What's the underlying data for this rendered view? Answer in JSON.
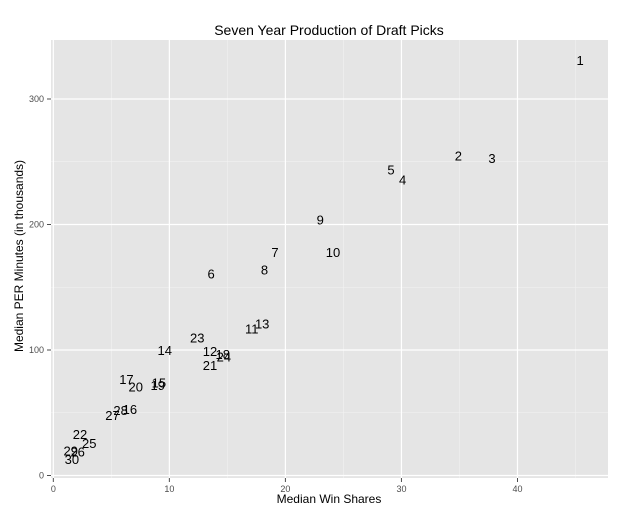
{
  "chart_data": {
    "type": "scatter",
    "title": "Seven Year Production of Draft Picks",
    "xlabel": "Median Win Shares",
    "ylabel": "Median PER Minutes (in thousands)",
    "xlim": [
      -0.2,
      47.8
    ],
    "ylim": [
      -2,
      347
    ],
    "x_ticks": [
      0,
      10,
      20,
      30,
      40
    ],
    "y_ticks": [
      0,
      100,
      200,
      300
    ],
    "grid": true,
    "legend": "none",
    "panel_background": "#e5e5e5",
    "grid_color": "#ffffff",
    "points": [
      {
        "label": "1",
        "x": 45.4,
        "y": 331
      },
      {
        "label": "2",
        "x": 34.9,
        "y": 255
      },
      {
        "label": "3",
        "x": 37.8,
        "y": 253
      },
      {
        "label": "4",
        "x": 30.1,
        "y": 236
      },
      {
        "label": "5",
        "x": 29.1,
        "y": 244
      },
      {
        "label": "6",
        "x": 13.6,
        "y": 161
      },
      {
        "label": "7",
        "x": 19.1,
        "y": 178
      },
      {
        "label": "8",
        "x": 18.2,
        "y": 164
      },
      {
        "label": "9",
        "x": 23.0,
        "y": 204
      },
      {
        "label": "10",
        "x": 24.1,
        "y": 178
      },
      {
        "label": "11",
        "x": 17.1,
        "y": 117
      },
      {
        "label": "12",
        "x": 13.5,
        "y": 99
      },
      {
        "label": "13",
        "x": 18.0,
        "y": 121
      },
      {
        "label": "14",
        "x": 9.6,
        "y": 100
      },
      {
        "label": "15",
        "x": 9.1,
        "y": 74
      },
      {
        "label": "16",
        "x": 6.6,
        "y": 53
      },
      {
        "label": "17",
        "x": 6.3,
        "y": 77
      },
      {
        "label": "18",
        "x": 14.6,
        "y": 97
      },
      {
        "label": "19",
        "x": 9.0,
        "y": 72
      },
      {
        "label": "20",
        "x": 7.1,
        "y": 71
      },
      {
        "label": "21",
        "x": 13.5,
        "y": 88
      },
      {
        "label": "22",
        "x": 2.3,
        "y": 33
      },
      {
        "label": "23",
        "x": 12.4,
        "y": 110
      },
      {
        "label": "24",
        "x": 14.7,
        "y": 95
      },
      {
        "label": "25",
        "x": 3.1,
        "y": 26
      },
      {
        "label": "26",
        "x": 2.1,
        "y": 19
      },
      {
        "label": "27",
        "x": 5.1,
        "y": 48
      },
      {
        "label": "28",
        "x": 5.8,
        "y": 52
      },
      {
        "label": "29",
        "x": 1.5,
        "y": 20
      },
      {
        "label": "30",
        "x": 1.6,
        "y": 13
      }
    ]
  }
}
